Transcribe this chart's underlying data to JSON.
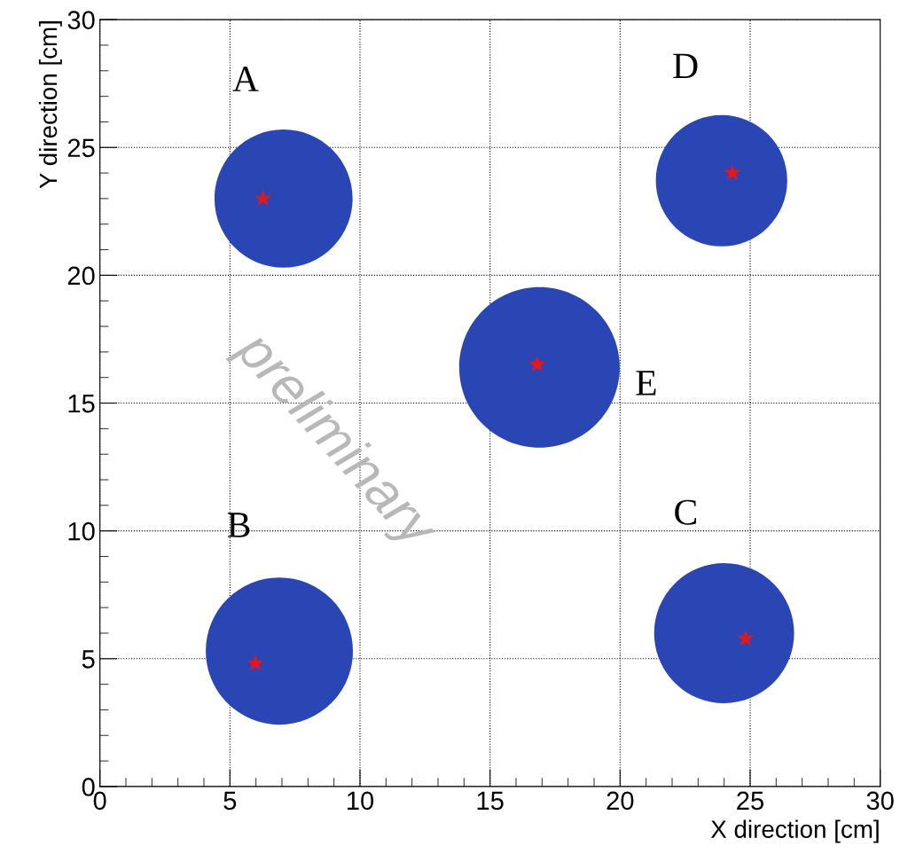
{
  "chart_data": {
    "type": "scatter",
    "xlabel": "X direction [cm]",
    "ylabel": "Y direction [cm]",
    "xlim": [
      0,
      30
    ],
    "ylim": [
      0,
      30
    ],
    "xticks": [
      0,
      5,
      10,
      15,
      20,
      25,
      30
    ],
    "yticks": [
      0,
      5,
      10,
      15,
      20,
      25,
      30
    ],
    "grid": true,
    "line_style": "dotted",
    "series": [
      {
        "type": "bubble",
        "color": "#2a46b4",
        "x": [
          7.06,
          6.9,
          24.0,
          23.9,
          16.9
        ],
        "values": [
          23.0,
          5.3,
          6.0,
          23.7,
          16.4
        ],
        "sizes": [
          0.74,
          0.84,
          0.76,
          0.67,
          1
        ],
        "value_labels": [
          "A",
          "B",
          "C",
          "D",
          "E"
        ]
      },
      {
        "color": "#e8161b",
        "marker": "star",
        "x": [
          6.27,
          5.97,
          24.82,
          24.31,
          16.81
        ],
        "values": [
          23.0,
          4.82,
          5.79,
          24.0,
          16.51
        ]
      }
    ],
    "annotations": [
      "preliminary"
    ]
  }
}
